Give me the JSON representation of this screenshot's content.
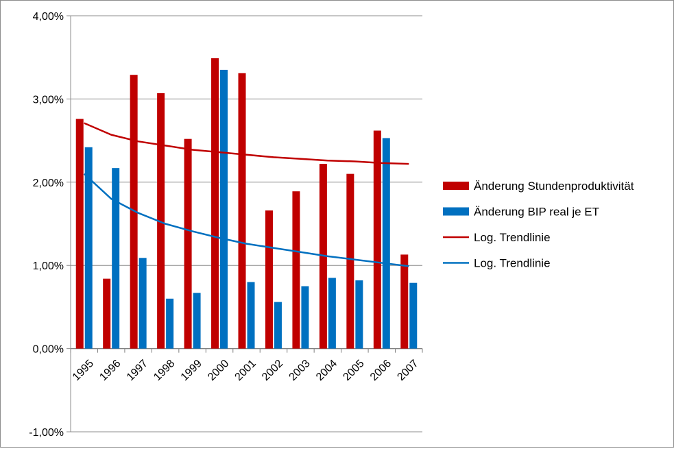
{
  "chart_data": {
    "type": "bar",
    "categories": [
      "1995",
      "1996",
      "1997",
      "1998",
      "1999",
      "2000",
      "2001",
      "2002",
      "2003",
      "2004",
      "2005",
      "2006",
      "2007"
    ],
    "series": [
      {
        "name": "Änderung Stundenproduktivität",
        "kind": "bar",
        "color": "#c00000",
        "values": [
          2.76,
          0.84,
          3.29,
          3.07,
          2.52,
          3.49,
          3.31,
          1.66,
          1.89,
          2.22,
          2.1,
          2.62,
          1.13
        ]
      },
      {
        "name": "Änderung BIP real je ET",
        "kind": "bar",
        "color": "#0070c0",
        "values": [
          2.42,
          2.17,
          1.09,
          0.6,
          0.67,
          3.35,
          0.8,
          0.56,
          0.75,
          0.85,
          0.82,
          2.53,
          0.79
        ]
      },
      {
        "name": "Log. Trendlinie",
        "kind": "trendline",
        "color": "#c00000",
        "values": [
          2.71,
          2.57,
          2.49,
          2.44,
          2.39,
          2.36,
          2.33,
          2.3,
          2.28,
          2.26,
          2.25,
          2.23,
          2.22
        ]
      },
      {
        "name": "Log. Trendlinie",
        "kind": "trendline",
        "color": "#0070c0",
        "values": [
          2.1,
          1.8,
          1.63,
          1.5,
          1.41,
          1.33,
          1.26,
          1.21,
          1.16,
          1.11,
          1.07,
          1.03,
          0.99
        ]
      }
    ],
    "y_tick_labels": [
      "-1,00%",
      "0,00%",
      "1,00%",
      "2,00%",
      "3,00%",
      "4,00%"
    ],
    "y_tick_values": [
      -1,
      0,
      1,
      2,
      3,
      4
    ],
    "ylim": [
      -1,
      4
    ],
    "y_unit": "percent",
    "grid": true,
    "legend_position": "right",
    "title": "",
    "xlabel": "",
    "ylabel": ""
  }
}
